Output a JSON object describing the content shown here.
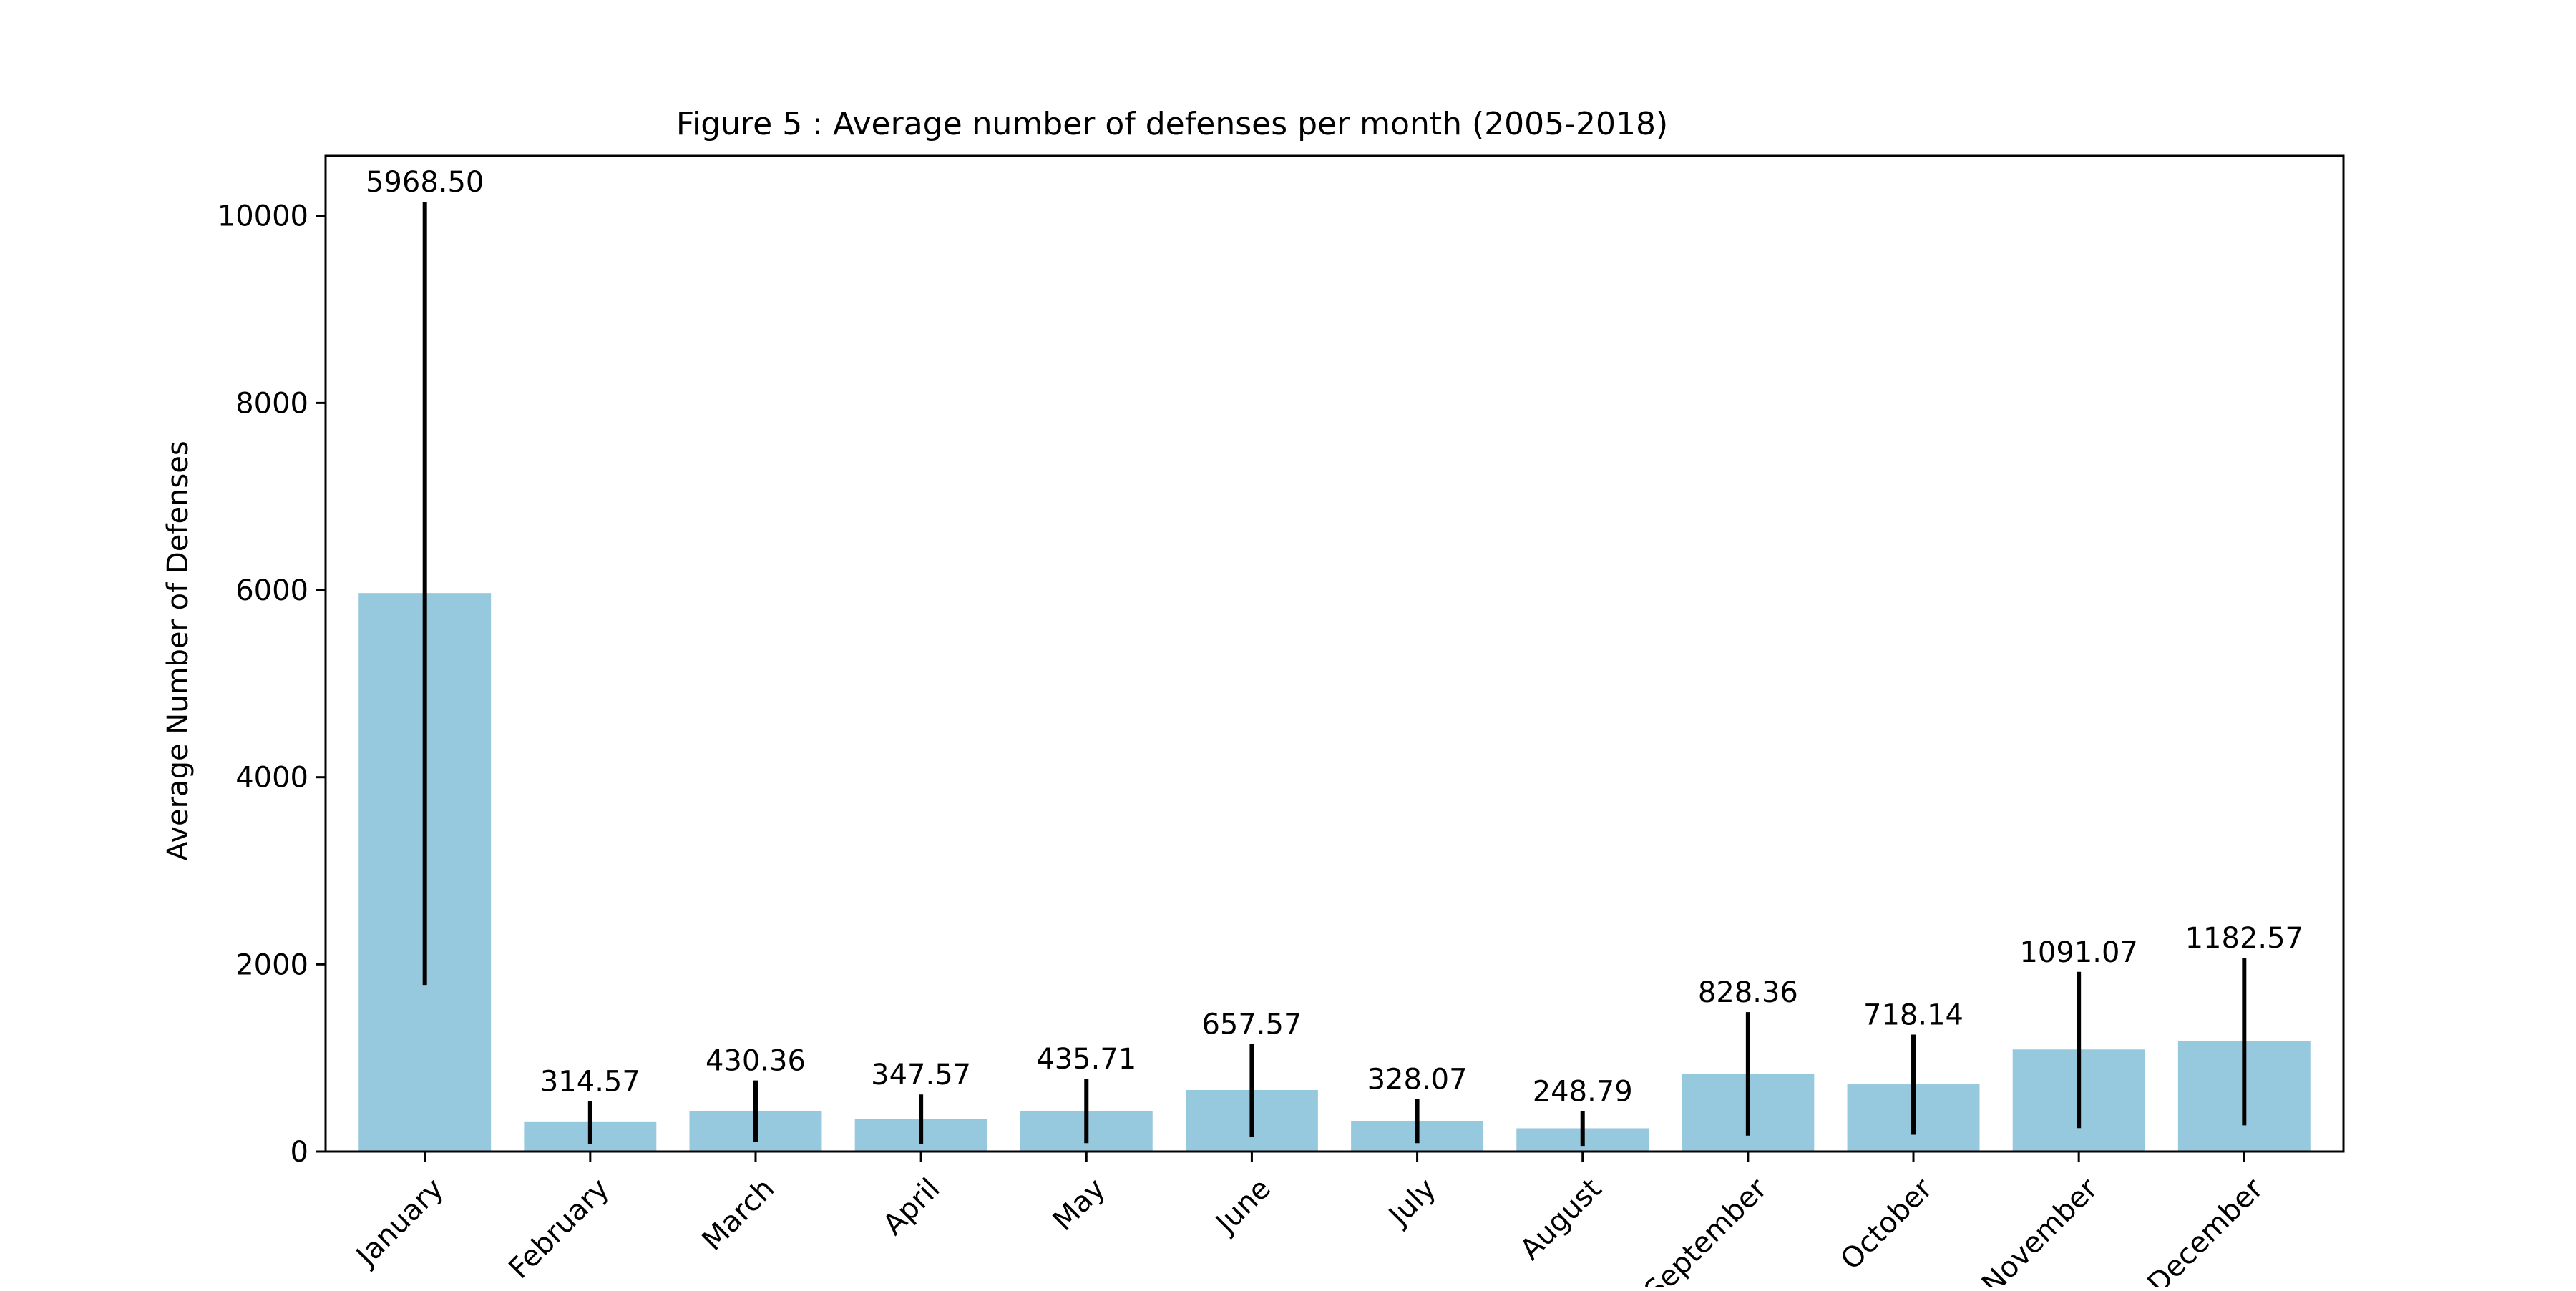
{
  "chart_data": {
    "type": "bar",
    "title": "Figure 5 : Average number of defenses per month (2005-2018)",
    "xlabel": "",
    "ylabel": "Average Number of Defenses",
    "categories": [
      "January",
      "February",
      "March",
      "April",
      "May",
      "June",
      "July",
      "August",
      "September",
      "October",
      "November",
      "December"
    ],
    "values": [
      5968.5,
      314.57,
      430.36,
      347.57,
      435.71,
      657.57,
      328.07,
      248.79,
      828.36,
      718.14,
      1091.07,
      1182.57
    ],
    "value_labels": [
      "5968.50",
      "314.57",
      "430.36",
      "347.57",
      "435.71",
      "657.57",
      "328.07",
      "248.79",
      "828.36",
      "718.14",
      "1091.07",
      "1182.57"
    ],
    "error_low": [
      1780,
      80,
      100,
      80,
      90,
      160,
      90,
      60,
      170,
      180,
      250,
      280
    ],
    "error_high": [
      10150,
      540,
      760,
      610,
      780,
      1150,
      560,
      430,
      1490,
      1250,
      1920,
      2070
    ],
    "yticks": [
      0,
      2000,
      4000,
      6000,
      8000,
      10000
    ],
    "ytick_labels": [
      "0",
      "2000",
      "4000",
      "6000",
      "8000",
      "10000"
    ],
    "ylim": [
      0,
      10640
    ],
    "bar_color": "#96c8de",
    "errorbar_color": "#000000",
    "grid": false,
    "legend": false
  }
}
